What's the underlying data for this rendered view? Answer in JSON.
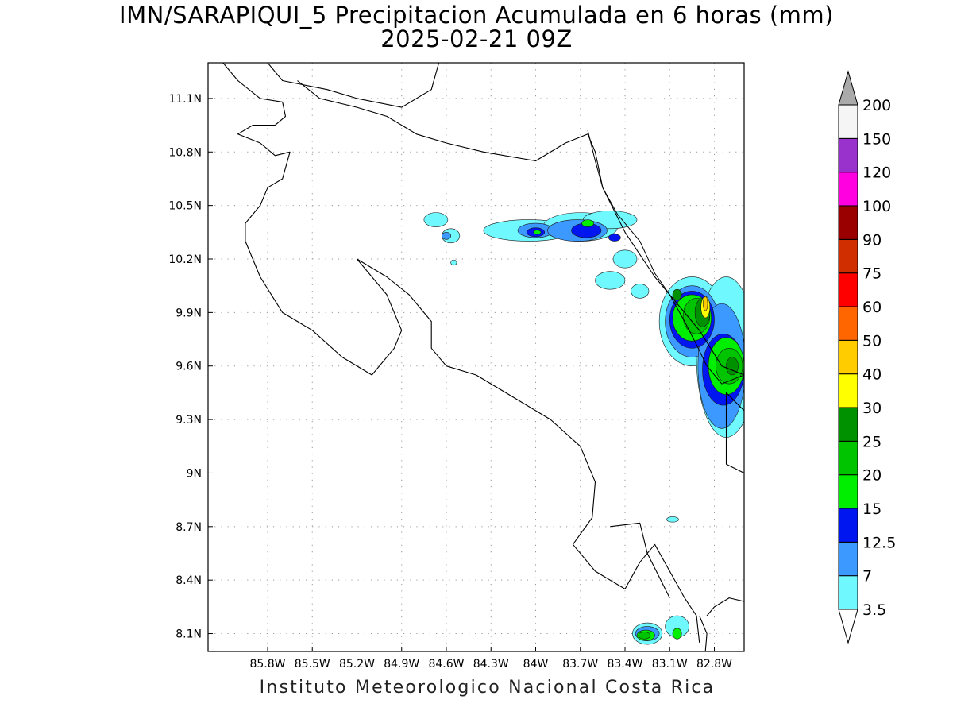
{
  "title": {
    "line1": "IMN/SARAPIQUI_5 Precipitacion Acumulada en 6 horas (mm)",
    "line2": "2025-02-21 09Z"
  },
  "footer": "Instituto Meteorologico Nacional Costa Rica",
  "map": {
    "lon_range": [
      -86.2,
      -82.6
    ],
    "lat_range": [
      8.0,
      11.3
    ],
    "grid": true,
    "lon_ticks": [
      {
        "value": -85.8,
        "label": "85.8W"
      },
      {
        "value": -85.5,
        "label": "85.5W"
      },
      {
        "value": -85.2,
        "label": "85.2W"
      },
      {
        "value": -84.9,
        "label": "84.9W"
      },
      {
        "value": -84.6,
        "label": "84.6W"
      },
      {
        "value": -84.3,
        "label": "84.3W"
      },
      {
        "value": -84.0,
        "label": "84W"
      },
      {
        "value": -83.7,
        "label": "83.7W"
      },
      {
        "value": -83.4,
        "label": "83.4W"
      },
      {
        "value": -83.1,
        "label": "83.1W"
      },
      {
        "value": -82.8,
        "label": "82.8W"
      }
    ],
    "lat_ticks": [
      {
        "value": 11.1,
        "label": "11.1N"
      },
      {
        "value": 10.8,
        "label": "10.8N"
      },
      {
        "value": 10.5,
        "label": "10.5N"
      },
      {
        "value": 10.2,
        "label": "10.2N"
      },
      {
        "value": 9.9,
        "label": "9.9N"
      },
      {
        "value": 9.6,
        "label": "9.6N"
      },
      {
        "value": 9.3,
        "label": "9.3N"
      },
      {
        "value": 9.0,
        "label": "9N"
      },
      {
        "value": 8.7,
        "label": "8.7N"
      },
      {
        "value": 8.4,
        "label": "8.4N"
      },
      {
        "value": 8.1,
        "label": "8.1N"
      }
    ],
    "precip_blobs": [
      {
        "lon": -84.67,
        "lat": 10.42,
        "rx": 0.08,
        "ry": 0.04,
        "mm": 3.5
      },
      {
        "lon": -84.57,
        "lat": 10.33,
        "rx": 0.06,
        "ry": 0.04,
        "mm": 3.5
      },
      {
        "lon": -84.6,
        "lat": 10.33,
        "rx": 0.03,
        "ry": 0.02,
        "mm": 7
      },
      {
        "lon": -84.55,
        "lat": 10.18,
        "rx": 0.02,
        "ry": 0.015,
        "mm": 3.5
      },
      {
        "lon": -84.05,
        "lat": 10.36,
        "rx": 0.3,
        "ry": 0.06,
        "mm": 3.5
      },
      {
        "lon": -83.7,
        "lat": 10.38,
        "rx": 0.25,
        "ry": 0.08,
        "mm": 3.5
      },
      {
        "lon": -83.5,
        "lat": 10.42,
        "rx": 0.18,
        "ry": 0.05,
        "mm": 3.5
      },
      {
        "lon": -84.0,
        "lat": 10.36,
        "rx": 0.12,
        "ry": 0.04,
        "mm": 7
      },
      {
        "lon": -83.72,
        "lat": 10.36,
        "rx": 0.2,
        "ry": 0.06,
        "mm": 7
      },
      {
        "lon": -84.0,
        "lat": 10.35,
        "rx": 0.06,
        "ry": 0.025,
        "mm": 12.5
      },
      {
        "lon": -83.66,
        "lat": 10.36,
        "rx": 0.1,
        "ry": 0.04,
        "mm": 12.5
      },
      {
        "lon": -83.99,
        "lat": 10.35,
        "rx": 0.025,
        "ry": 0.012,
        "mm": 15
      },
      {
        "lon": -83.65,
        "lat": 10.4,
        "rx": 0.04,
        "ry": 0.02,
        "mm": 15
      },
      {
        "lon": -83.47,
        "lat": 10.32,
        "rx": 0.04,
        "ry": 0.02,
        "mm": 12.5
      },
      {
        "lon": -83.4,
        "lat": 10.2,
        "rx": 0.08,
        "ry": 0.05,
        "mm": 3.5
      },
      {
        "lon": -83.5,
        "lat": 10.08,
        "rx": 0.1,
        "ry": 0.05,
        "mm": 3.5
      },
      {
        "lon": -83.3,
        "lat": 10.02,
        "rx": 0.06,
        "ry": 0.04,
        "mm": 3.5
      },
      {
        "lon": -82.95,
        "lat": 9.85,
        "rx": 0.22,
        "ry": 0.25,
        "mm": 3.5
      },
      {
        "lon": -82.72,
        "lat": 9.65,
        "rx": 0.2,
        "ry": 0.45,
        "mm": 3.5
      },
      {
        "lon": -82.95,
        "lat": 9.85,
        "rx": 0.18,
        "ry": 0.2,
        "mm": 7
      },
      {
        "lon": -82.75,
        "lat": 9.6,
        "rx": 0.16,
        "ry": 0.35,
        "mm": 7
      },
      {
        "lon": -82.95,
        "lat": 9.86,
        "rx": 0.15,
        "ry": 0.16,
        "mm": 12.5
      },
      {
        "lon": -82.74,
        "lat": 9.58,
        "rx": 0.14,
        "ry": 0.2,
        "mm": 12.5
      },
      {
        "lon": -82.95,
        "lat": 9.87,
        "rx": 0.13,
        "ry": 0.13,
        "mm": 15
      },
      {
        "lon": -82.72,
        "lat": 9.6,
        "rx": 0.12,
        "ry": 0.16,
        "mm": 15
      },
      {
        "lon": -82.92,
        "lat": 9.88,
        "rx": 0.09,
        "ry": 0.1,
        "mm": 20
      },
      {
        "lon": -82.7,
        "lat": 9.6,
        "rx": 0.09,
        "ry": 0.1,
        "mm": 20
      },
      {
        "lon": -82.88,
        "lat": 9.9,
        "rx": 0.05,
        "ry": 0.08,
        "mm": 25
      },
      {
        "lon": -82.86,
        "lat": 9.93,
        "rx": 0.03,
        "ry": 0.06,
        "mm": 30
      },
      {
        "lon": -82.86,
        "lat": 9.95,
        "rx": 0.015,
        "ry": 0.04,
        "mm": 40
      },
      {
        "lon": -82.68,
        "lat": 9.6,
        "rx": 0.04,
        "ry": 0.05,
        "mm": 25
      },
      {
        "lon": -83.05,
        "lat": 10.0,
        "rx": 0.03,
        "ry": 0.03,
        "mm": 25
      },
      {
        "lon": -83.08,
        "lat": 8.74,
        "rx": 0.04,
        "ry": 0.015,
        "mm": 3.5
      },
      {
        "lon": -83.25,
        "lat": 8.1,
        "rx": 0.1,
        "ry": 0.06,
        "mm": 3.5
      },
      {
        "lon": -83.05,
        "lat": 8.14,
        "rx": 0.08,
        "ry": 0.06,
        "mm": 3.5
      },
      {
        "lon": -83.25,
        "lat": 8.1,
        "rx": 0.08,
        "ry": 0.04,
        "mm": 7
      },
      {
        "lon": -83.26,
        "lat": 8.09,
        "rx": 0.06,
        "ry": 0.03,
        "mm": 15
      },
      {
        "lon": -83.27,
        "lat": 8.09,
        "rx": 0.04,
        "ry": 0.02,
        "mm": 20
      },
      {
        "lon": -83.05,
        "lat": 8.1,
        "rx": 0.03,
        "ry": 0.03,
        "mm": 15
      }
    ],
    "coastline": [
      [
        [
          -86.1,
          11.3
        ],
        [
          -86.0,
          11.2
        ],
        [
          -85.85,
          11.1
        ],
        [
          -85.7,
          11.08
        ],
        [
          -85.68,
          11.0
        ],
        [
          -85.75,
          10.95
        ],
        [
          -85.9,
          10.95
        ],
        [
          -86.0,
          10.9
        ],
        [
          -85.85,
          10.85
        ],
        [
          -85.75,
          10.78
        ],
        [
          -85.65,
          10.8
        ],
        [
          -85.7,
          10.65
        ],
        [
          -85.8,
          10.6
        ],
        [
          -85.85,
          10.5
        ],
        [
          -85.95,
          10.4
        ],
        [
          -85.95,
          10.3
        ],
        [
          -85.85,
          10.1
        ],
        [
          -85.7,
          9.9
        ],
        [
          -85.5,
          9.8
        ],
        [
          -85.3,
          9.65
        ],
        [
          -85.1,
          9.55
        ],
        [
          -84.95,
          9.7
        ],
        [
          -84.9,
          9.8
        ],
        [
          -84.95,
          9.9
        ],
        [
          -85.0,
          10.0
        ],
        [
          -85.1,
          10.1
        ],
        [
          -85.2,
          10.2
        ],
        [
          -85.0,
          10.1
        ],
        [
          -84.85,
          10.0
        ],
        [
          -84.7,
          9.85
        ],
        [
          -84.7,
          9.7
        ],
        [
          -84.6,
          9.6
        ],
        [
          -84.4,
          9.55
        ],
        [
          -84.2,
          9.45
        ],
        [
          -83.9,
          9.3
        ],
        [
          -83.7,
          9.15
        ],
        [
          -83.6,
          8.95
        ],
        [
          -83.62,
          8.75
        ],
        [
          -83.75,
          8.6
        ],
        [
          -83.6,
          8.45
        ],
        [
          -83.4,
          8.35
        ],
        [
          -83.3,
          8.5
        ],
        [
          -83.2,
          8.6
        ],
        [
          -83.1,
          8.45
        ],
        [
          -83.0,
          8.3
        ],
        [
          -82.92,
          8.2
        ],
        [
          -82.9,
          8.05
        ]
      ],
      [
        [
          -85.6,
          11.2
        ],
        [
          -85.45,
          11.1
        ],
        [
          -85.2,
          11.05
        ],
        [
          -85.0,
          11.0
        ],
        [
          -84.8,
          10.9
        ],
        [
          -84.6,
          10.85
        ],
        [
          -84.35,
          10.8
        ],
        [
          -84.0,
          10.75
        ],
        [
          -83.8,
          10.85
        ],
        [
          -83.65,
          10.9
        ],
        [
          -83.6,
          10.8
        ],
        [
          -83.55,
          10.6
        ],
        [
          -83.4,
          10.35
        ],
        [
          -83.2,
          10.1
        ],
        [
          -83.05,
          9.95
        ],
        [
          -82.9,
          9.8
        ],
        [
          -82.75,
          9.6
        ],
        [
          -82.6,
          9.55
        ]
      ],
      [
        [
          -85.8,
          11.3
        ],
        [
          -85.7,
          11.2
        ],
        [
          -85.4,
          11.15
        ],
        [
          -85.2,
          11.1
        ],
        [
          -84.9,
          11.05
        ],
        [
          -84.7,
          11.15
        ],
        [
          -84.65,
          11.3
        ]
      ],
      [
        [
          -82.6,
          9.35
        ],
        [
          -82.72,
          9.45
        ],
        [
          -82.72,
          9.05
        ],
        [
          -82.6,
          9.0
        ],
        [
          -82.55,
          8.9
        ]
      ],
      [
        [
          -83.5,
          8.7
        ],
        [
          -83.3,
          8.72
        ],
        [
          -83.25,
          8.55
        ],
        [
          -83.1,
          8.3
        ]
      ],
      [
        [
          -82.9,
          8.2
        ],
        [
          -82.85,
          8.1
        ],
        [
          -82.86,
          8.0
        ]
      ],
      [
        [
          -82.85,
          8.2
        ],
        [
          -82.8,
          8.25
        ],
        [
          -82.7,
          8.3
        ],
        [
          -82.6,
          8.28
        ]
      ]
    ],
    "border": [
      [
        -83.65,
        10.92
      ],
      [
        -83.6,
        10.75
      ],
      [
        -83.55,
        10.6
      ],
      [
        -83.45,
        10.45
      ],
      [
        -83.3,
        10.3
      ],
      [
        -83.2,
        10.12
      ],
      [
        -83.1,
        10.0
      ],
      [
        -83.0,
        9.85
      ],
      [
        -82.92,
        9.72
      ],
      [
        -82.85,
        9.6
      ],
      [
        -82.75,
        9.5
      ],
      [
        -82.6,
        9.55
      ]
    ]
  },
  "colorbar": {
    "levels": [
      "3.5",
      "7",
      "12.5",
      "15",
      "20",
      "25",
      "30",
      "40",
      "50",
      "60",
      "75",
      "90",
      "100",
      "120",
      "150",
      "200"
    ],
    "colors": [
      "#ffffff",
      "#6ff9ff",
      "#3c99ff",
      "#0016f0",
      "#00ee00",
      "#00c400",
      "#009100",
      "#ffff00",
      "#ffcc00",
      "#ff6600",
      "#ff0000",
      "#d02d00",
      "#9a0000",
      "#ff00e0",
      "#9932cc",
      "#f5f5f5",
      "#aaaaaa"
    ]
  }
}
